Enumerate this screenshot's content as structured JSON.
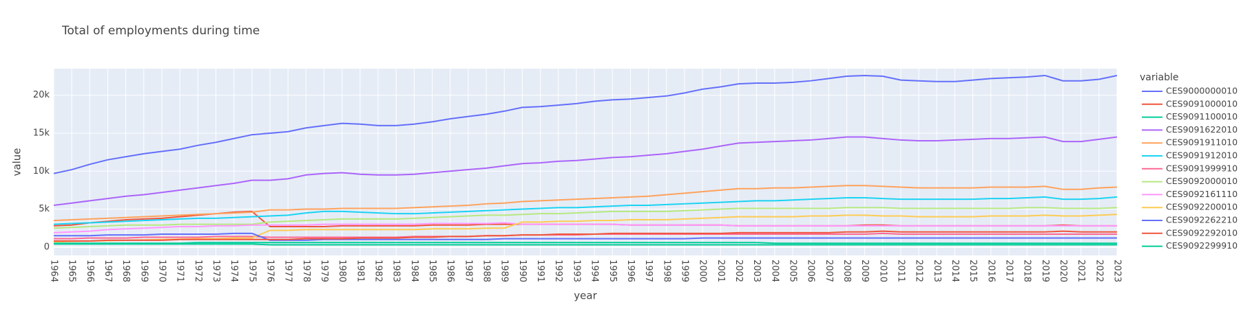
{
  "chart_data": {
    "type": "line",
    "title": "Total of employments during time",
    "x_label": "year",
    "y_label": "value",
    "legend_title": "variable",
    "x": [
      1964,
      1965,
      1966,
      1967,
      1968,
      1969,
      1970,
      1971,
      1972,
      1973,
      1974,
      1975,
      1976,
      1977,
      1978,
      1979,
      1980,
      1981,
      1982,
      1983,
      1984,
      1985,
      1986,
      1987,
      1988,
      1989,
      1990,
      1991,
      1992,
      1993,
      1994,
      1995,
      1996,
      1997,
      1998,
      1999,
      2000,
      2001,
      2002,
      2003,
      2004,
      2005,
      2006,
      2007,
      2008,
      2009,
      2010,
      2011,
      2012,
      2013,
      2014,
      2015,
      2016,
      2017,
      2018,
      2019,
      2020,
      2021,
      2022,
      2023
    ],
    "xlim": [
      1964,
      2023
    ],
    "xticks": [
      1964,
      1965,
      1966,
      1967,
      1968,
      1969,
      1970,
      1971,
      1972,
      1973,
      1974,
      1975,
      1976,
      1977,
      1978,
      1979,
      1980,
      1981,
      1982,
      1983,
      1984,
      1985,
      1986,
      1987,
      1988,
      1989,
      1990,
      1991,
      1992,
      1993,
      1994,
      1995,
      1996,
      1997,
      1998,
      1999,
      2000,
      2001,
      2002,
      2003,
      2004,
      2005,
      2006,
      2007,
      2008,
      2009,
      2010,
      2011,
      2012,
      2013,
      2014,
      2015,
      2016,
      2017,
      2018,
      2019,
      2020,
      2021,
      2022,
      2023
    ],
    "ylim": [
      -1100,
      23500
    ],
    "yticks": [
      0,
      {
        "value": 5000,
        "label": "5k"
      },
      {
        "value": 10000,
        "label": "10k"
      },
      {
        "value": 15000,
        "label": "15k"
      },
      {
        "value": 20000,
        "label": "20k"
      }
    ],
    "grid": true,
    "legend": "right",
    "series": [
      {
        "name": "CES9000000010",
        "color": "#636efa",
        "values": [
          9700,
          10200,
          10900,
          11500,
          11900,
          12300,
          12600,
          12900,
          13400,
          13800,
          14300,
          14800,
          15000,
          15200,
          15700,
          16000,
          16300,
          16200,
          16000,
          16000,
          16200,
          16500,
          16900,
          17200,
          17500,
          17900,
          18400,
          18500,
          18700,
          18900,
          19200,
          19400,
          19500,
          19700,
          19900,
          20300,
          20800,
          21100,
          21500,
          21600,
          21600,
          21700,
          21900,
          22200,
          22500,
          22600,
          22500,
          22000,
          21900,
          21800,
          21800,
          22000,
          22200,
          22300,
          22400,
          22600,
          21900,
          21900,
          22100,
          22600
        ]
      },
      {
        "name": "CES9091000010",
        "color": "#EF553B",
        "values": [
          2800,
          2900,
          3200,
          3400,
          3600,
          3700,
          3800,
          4000,
          4200,
          4400,
          4600,
          4700,
          2700,
          2700,
          2700,
          2700,
          2800,
          2800,
          2800,
          2800,
          2800,
          2900,
          2900,
          2900,
          3000,
          3000,
          3000,
          3000,
          3000,
          3000,
          3000,
          3000,
          2900,
          2900,
          2900,
          2900,
          2900,
          2900,
          2800,
          2800,
          2800,
          2800,
          2800,
          2800,
          2800,
          2900,
          2900,
          2800,
          2800,
          2800,
          2800,
          2800,
          2800,
          2800,
          2800,
          2800,
          2900,
          2800,
          2800,
          2800
        ]
      },
      {
        "name": "CES9091100010",
        "color": "#00cc96",
        "values": [
          500,
          500,
          500,
          500,
          500,
          500,
          500,
          500,
          600,
          600,
          600,
          600,
          600,
          600,
          600,
          600,
          600,
          600,
          600,
          600,
          600,
          600,
          600,
          600,
          600,
          600,
          600,
          600,
          600,
          600,
          600,
          600,
          600,
          600,
          600,
          600,
          600,
          600,
          600,
          600,
          500,
          500,
          500,
          500,
          500,
          500,
          500,
          500,
          500,
          500,
          500,
          500,
          500,
          500,
          500,
          500,
          500,
          500,
          500,
          500
        ]
      },
      {
        "name": "CES9091622010",
        "color": "#ab63fa",
        "values": [
          5500,
          5800,
          6100,
          6400,
          6700,
          6900,
          7200,
          7500,
          7800,
          8100,
          8400,
          8800,
          8800,
          9000,
          9500,
          9700,
          9800,
          9600,
          9500,
          9500,
          9600,
          9800,
          10000,
          10200,
          10400,
          10700,
          11000,
          11100,
          11300,
          11400,
          11600,
          11800,
          11900,
          12100,
          12300,
          12600,
          12900,
          13300,
          13700,
          13800,
          13900,
          14000,
          14100,
          14300,
          14500,
          14500,
          14300,
          14100,
          14000,
          14000,
          14100,
          14200,
          14300,
          14300,
          14400,
          14500,
          13900,
          13900,
          14200,
          14500
        ]
      },
      {
        "name": "CES9091911010",
        "color": "#FFA15A",
        "values": [
          3500,
          3600,
          3700,
          3800,
          3900,
          4000,
          4100,
          4200,
          4300,
          4400,
          4500,
          4600,
          4900,
          4900,
          5000,
          5000,
          5100,
          5100,
          5100,
          5100,
          5200,
          5300,
          5400,
          5500,
          5700,
          5800,
          6000,
          6100,
          6200,
          6300,
          6400,
          6500,
          6600,
          6700,
          6900,
          7100,
          7300,
          7500,
          7700,
          7700,
          7800,
          7800,
          7900,
          8000,
          8100,
          8100,
          8000,
          7900,
          7800,
          7800,
          7800,
          7800,
          7900,
          7900,
          7900,
          8000,
          7600,
          7600,
          7800,
          7900
        ]
      },
      {
        "name": "CES9091912010",
        "color": "#19d3f3",
        "values": [
          3000,
          3100,
          3200,
          3300,
          3400,
          3500,
          3600,
          3700,
          3800,
          3800,
          3900,
          4000,
          4100,
          4200,
          4500,
          4700,
          4700,
          4600,
          4500,
          4400,
          4400,
          4500,
          4600,
          4700,
          4800,
          4900,
          5000,
          5100,
          5200,
          5200,
          5300,
          5400,
          5500,
          5500,
          5600,
          5700,
          5800,
          5900,
          6000,
          6100,
          6100,
          6200,
          6300,
          6400,
          6500,
          6500,
          6400,
          6300,
          6300,
          6300,
          6300,
          6300,
          6400,
          6400,
          6500,
          6600,
          6300,
          6300,
          6400,
          6600
        ]
      },
      {
        "name": "CES9091999910",
        "color": "#FF6692",
        "values": [
          1100,
          1100,
          1200,
          1200,
          1200,
          1300,
          1300,
          1300,
          1300,
          1400,
          1400,
          1400,
          1300,
          1300,
          1300,
          1300,
          1300,
          1300,
          1300,
          1300,
          1400,
          1400,
          1400,
          1400,
          1500,
          1500,
          1600,
          1600,
          1600,
          1600,
          1700,
          1700,
          1700,
          1700,
          1700,
          1700,
          1700,
          1700,
          1700,
          1700,
          1700,
          1700,
          1700,
          1700,
          1700,
          1700,
          1800,
          1700,
          1700,
          1700,
          1700,
          1700,
          1700,
          1700,
          1700,
          1700,
          1700,
          1700,
          1700,
          1700
        ]
      },
      {
        "name": "CES9092000010",
        "color": "#B6E880",
        "values": [
          2500,
          2600,
          2700,
          2800,
          2900,
          2900,
          2900,
          3000,
          3000,
          3000,
          3000,
          3000,
          3300,
          3400,
          3500,
          3600,
          3700,
          3700,
          3700,
          3700,
          3800,
          3900,
          4000,
          4100,
          4200,
          4200,
          4300,
          4400,
          4400,
          4500,
          4600,
          4700,
          4700,
          4700,
          4700,
          4800,
          4900,
          5000,
          5100,
          5100,
          5100,
          5100,
          5100,
          5100,
          5200,
          5200,
          5200,
          5100,
          5100,
          5100,
          5100,
          5100,
          5100,
          5100,
          5200,
          5200,
          5100,
          5100,
          5100,
          5200
        ]
      },
      {
        "name": "CES9092161110",
        "color": "#FF97FF",
        "values": [
          1900,
          2000,
          2100,
          2300,
          2400,
          2500,
          2600,
          2700,
          2700,
          2800,
          2800,
          2900,
          2900,
          2900,
          2900,
          3000,
          3000,
          3000,
          3000,
          3000,
          3000,
          3100,
          3100,
          3100,
          3100,
          3200,
          3000,
          3000,
          3000,
          3000,
          3000,
          3000,
          2900,
          2900,
          2900,
          2900,
          2900,
          2900,
          2800,
          2800,
          2800,
          2800,
          2800,
          2800,
          2800,
          2800,
          2800,
          2800,
          2800,
          2800,
          2800,
          2800,
          2800,
          2800,
          2800,
          2800,
          2800,
          2800,
          2800,
          2800
        ]
      },
      {
        "name": "CES9092200010",
        "color": "#FECB52",
        "values": [
          700,
          750,
          800,
          850,
          900,
          950,
          1000,
          1050,
          1100,
          1100,
          1200,
          1200,
          2200,
          2200,
          2300,
          2300,
          2300,
          2300,
          2300,
          2300,
          2300,
          2400,
          2400,
          2400,
          2500,
          2500,
          3300,
          3300,
          3400,
          3400,
          3500,
          3500,
          3600,
          3600,
          3600,
          3700,
          3800,
          3900,
          4000,
          4000,
          4000,
          4000,
          4100,
          4100,
          4200,
          4200,
          4100,
          4100,
          4000,
          4000,
          4000,
          4000,
          4100,
          4100,
          4100,
          4200,
          4100,
          4100,
          4200,
          4300
        ]
      },
      {
        "name": "CES9092262210",
        "color": "#636efa",
        "values": [
          1500,
          1500,
          1500,
          1600,
          1600,
          1600,
          1700,
          1700,
          1700,
          1700,
          1800,
          1800,
          900,
          900,
          900,
          1000,
          1000,
          1000,
          1000,
          1000,
          1000,
          1000,
          1000,
          1000,
          1000,
          1100,
          1100,
          1100,
          1100,
          1100,
          1100,
          1100,
          1100,
          1100,
          1100,
          1100,
          1200,
          1200,
          1200,
          1200,
          1200,
          1200,
          1200,
          1200,
          1200,
          1200,
          1200,
          1200,
          1200,
          1200,
          1200,
          1200,
          1200,
          1200,
          1200,
          1200,
          1200,
          1200,
          1200,
          1200
        ]
      },
      {
        "name": "CES9092292010",
        "color": "#EF553B",
        "values": [
          800,
          800,
          800,
          900,
          900,
          900,
          900,
          1000,
          1000,
          1000,
          1000,
          1000,
          1000,
          1000,
          1100,
          1100,
          1100,
          1200,
          1200,
          1200,
          1300,
          1300,
          1400,
          1400,
          1500,
          1500,
          1600,
          1600,
          1700,
          1700,
          1700,
          1800,
          1800,
          1800,
          1800,
          1800,
          1800,
          1800,
          1900,
          1900,
          1900,
          1900,
          1900,
          1900,
          2000,
          2000,
          2100,
          2000,
          2000,
          2000,
          2000,
          2000,
          2000,
          2000,
          2000,
          2000,
          2100,
          2000,
          2000,
          2000
        ]
      },
      {
        "name": "CES9092299910",
        "color": "#00cc96",
        "values": [
          400,
          400,
          400,
          400,
          400,
          400,
          400,
          400,
          400,
          400,
          400,
          400,
          300,
          300,
          300,
          300,
          300,
          300,
          300,
          300,
          300,
          300,
          300,
          300,
          300,
          300,
          300,
          300,
          300,
          300,
          300,
          300,
          300,
          300,
          300,
          300,
          300,
          300,
          300,
          300,
          300,
          300,
          300,
          300,
          300,
          300,
          300,
          300,
          300,
          300,
          300,
          300,
          300,
          300,
          300,
          300,
          300,
          300,
          300,
          300
        ]
      }
    ]
  }
}
